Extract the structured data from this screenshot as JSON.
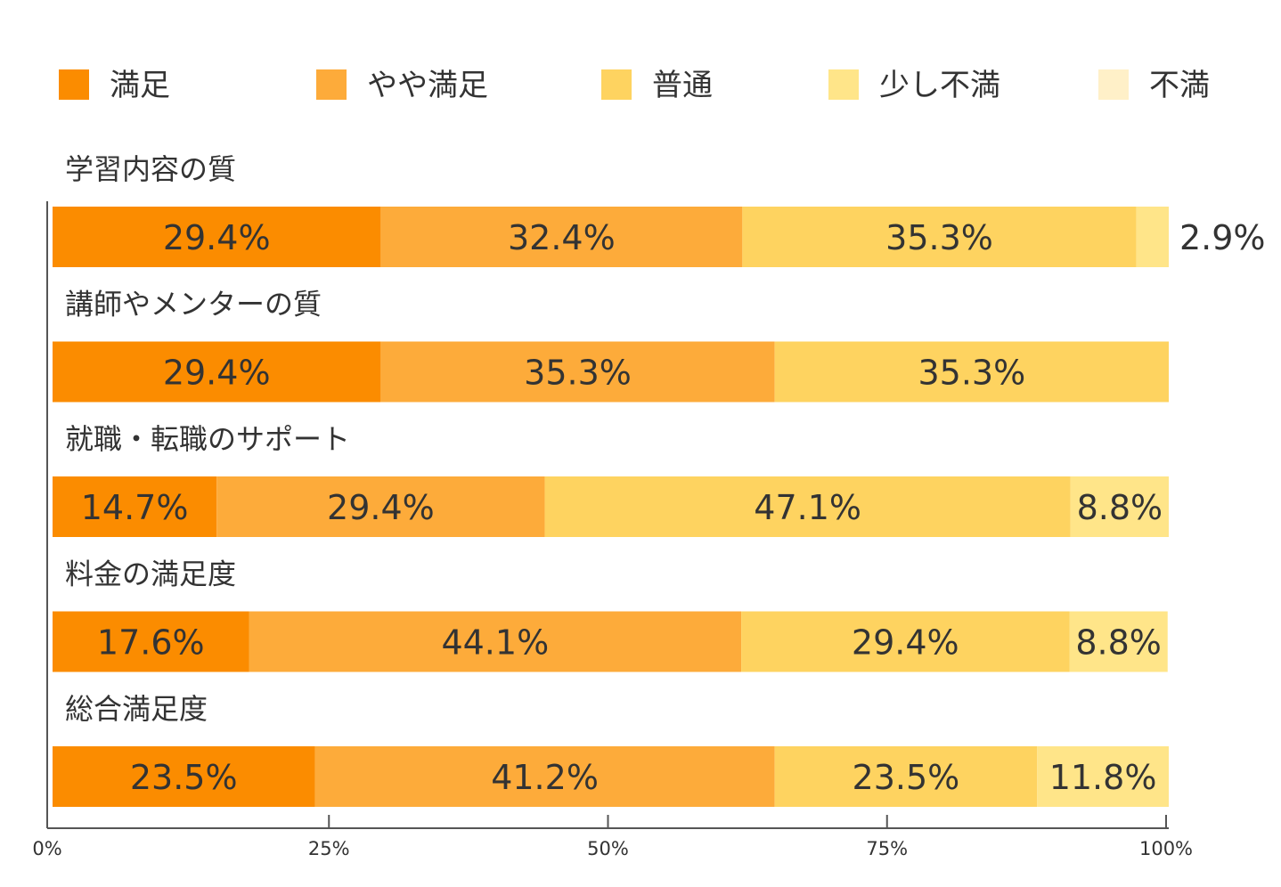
{
  "chart_data": {
    "type": "bar",
    "orientation": "horizontal",
    "stacked": true,
    "legend_position": "top",
    "categories": [
      "学習内容の質",
      "講師やメンターの質",
      "就職・転職のサポート",
      "料金の満足度",
      "総合満足度"
    ],
    "series": [
      {
        "name": "満足",
        "color": "#fb8c00",
        "values": [
          29.4,
          29.4,
          14.7,
          17.6,
          23.5
        ],
        "labels": [
          "29.4%",
          "29.4%",
          "14.7%",
          "17.6%",
          "23.5%"
        ]
      },
      {
        "name": "やや満足",
        "color": "#fdab3a",
        "values": [
          32.4,
          35.3,
          29.4,
          44.1,
          41.2
        ],
        "labels": [
          "32.4%",
          "35.3%",
          "29.4%",
          "44.1%",
          "41.2%"
        ]
      },
      {
        "name": "普通",
        "color": "#fed360",
        "values": [
          35.3,
          35.3,
          47.1,
          29.4,
          23.5
        ],
        "labels": [
          "35.3%",
          "35.3%",
          "47.1%",
          "29.4%",
          "23.5%"
        ]
      },
      {
        "name": "少し不満",
        "color": "#ffe589",
        "values": [
          2.9,
          0,
          8.8,
          8.8,
          11.8
        ],
        "labels": [
          "2.9%",
          "",
          "8.8%",
          "8.8%",
          "11.8%"
        ]
      },
      {
        "name": "不満",
        "color": "#fff0c8",
        "values": [
          0,
          0,
          0,
          0,
          0
        ],
        "labels": [
          "",
          "",
          "",
          "",
          ""
        ]
      }
    ],
    "xlim": [
      0,
      100
    ],
    "xticks": [
      0,
      25,
      50,
      75,
      100
    ],
    "xtick_labels": [
      "0%",
      "25%",
      "50%",
      "75%",
      "100%"
    ],
    "title": "",
    "xlabel": "",
    "ylabel": "",
    "grid": false
  }
}
